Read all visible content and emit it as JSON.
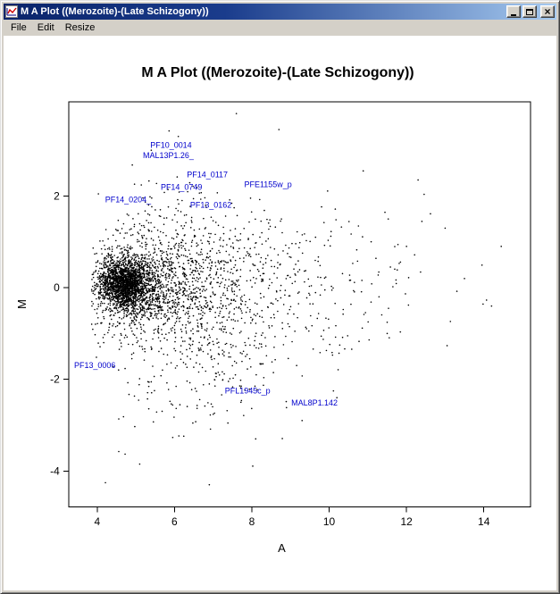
{
  "window": {
    "title": "M A Plot ((Merozoite)-(Late Schizogony))",
    "controls": {
      "minimize": "Minimize",
      "maximize": "Maximize",
      "close": "Close",
      "close_glyph": "×"
    }
  },
  "menu": {
    "items": [
      "File",
      "Edit",
      "Resize"
    ]
  },
  "chart_data": {
    "type": "scatter",
    "title": "M A Plot ((Merozoite)-(Late Schizogony))",
    "xlabel": "A",
    "ylabel": "M",
    "xlim": [
      3.26,
      15.21
    ],
    "ylim": [
      -4.78,
      4.06
    ],
    "xticks": [
      4,
      6,
      8,
      10,
      12,
      14
    ],
    "yticks": [
      -4,
      -2,
      0,
      2
    ],
    "grid": false,
    "legend": false,
    "point_color": "#000000",
    "label_color": "#0000cc",
    "labeled_points": [
      {
        "label": "PF10_0014",
        "x": 5.91,
        "y": 3.11
      },
      {
        "label": "MAL13P1.26_",
        "x": 5.84,
        "y": 2.89
      },
      {
        "label": "PF14_0117",
        "x": 6.85,
        "y": 2.47
      },
      {
        "label": "PF14_0749",
        "x": 6.18,
        "y": 2.19
      },
      {
        "label": "PFE1155w_p",
        "x": 8.42,
        "y": 2.25
      },
      {
        "label": "PF14_0204_",
        "x": 4.8,
        "y": 1.92
      },
      {
        "label": "PF13_0162",
        "x": 6.94,
        "y": 1.8
      },
      {
        "label": "PF13_0006",
        "x": 3.94,
        "y": -1.69
      },
      {
        "label": "PFL1945c_p",
        "x": 7.89,
        "y": -2.25
      },
      {
        "label": "MAL8P1.142",
        "x": 9.62,
        "y": -2.51
      }
    ],
    "point_cloud": {
      "seed": 1337,
      "point_radius": 0.8,
      "x_clip": [
        3.85,
        14.6
      ],
      "y_clip": [
        -4.45,
        3.8
      ],
      "clusters": [
        {
          "count": 1500,
          "x_mean": 4.7,
          "x_sd": 0.32,
          "y_mean": 0.08,
          "y_sd": 0.25
        },
        {
          "count": 800,
          "x_mean": 4.9,
          "x_sd": 0.5,
          "y_mean": 0.05,
          "y_sd": 0.45
        },
        {
          "count": 600,
          "x_mean": 5.6,
          "x_sd": 0.8,
          "y_mean": 0.0,
          "y_sd": 0.6
        },
        {
          "count": 500,
          "x_mean": 6.5,
          "x_sd": 1.1,
          "y_mean": -0.1,
          "y_sd": 0.85
        },
        {
          "count": 350,
          "x_mean": 7.6,
          "x_sd": 1.6,
          "y_mean": -0.15,
          "y_sd": 1.05
        },
        {
          "count": 150,
          "x_mean": 9.5,
          "x_sd": 2.0,
          "y_mean": 0.0,
          "y_sd": 0.85
        },
        {
          "count": 130,
          "x_mean": 6.3,
          "x_sd": 1.2,
          "y_mean": -1.8,
          "y_sd": 0.75
        },
        {
          "count": 60,
          "x_mean": 5.9,
          "x_sd": 1.0,
          "y_mean": 1.6,
          "y_sd": 0.55
        }
      ],
      "outliers": [
        [
          7.6,
          3.8
        ],
        [
          8.7,
          3.45
        ],
        [
          6.1,
          3.3
        ],
        [
          5.4,
          3.0
        ],
        [
          12.3,
          2.35
        ],
        [
          13.0,
          1.3
        ],
        [
          14.45,
          0.9
        ],
        [
          14.2,
          -0.4
        ],
        [
          13.5,
          0.2
        ],
        [
          6.9,
          -4.3
        ],
        [
          5.1,
          -3.85
        ],
        [
          8.1,
          -3.3
        ],
        [
          9.3,
          -2.9
        ],
        [
          10.2,
          -2.4
        ],
        [
          11.5,
          -1.0
        ],
        [
          12.0,
          0.9
        ]
      ]
    }
  }
}
